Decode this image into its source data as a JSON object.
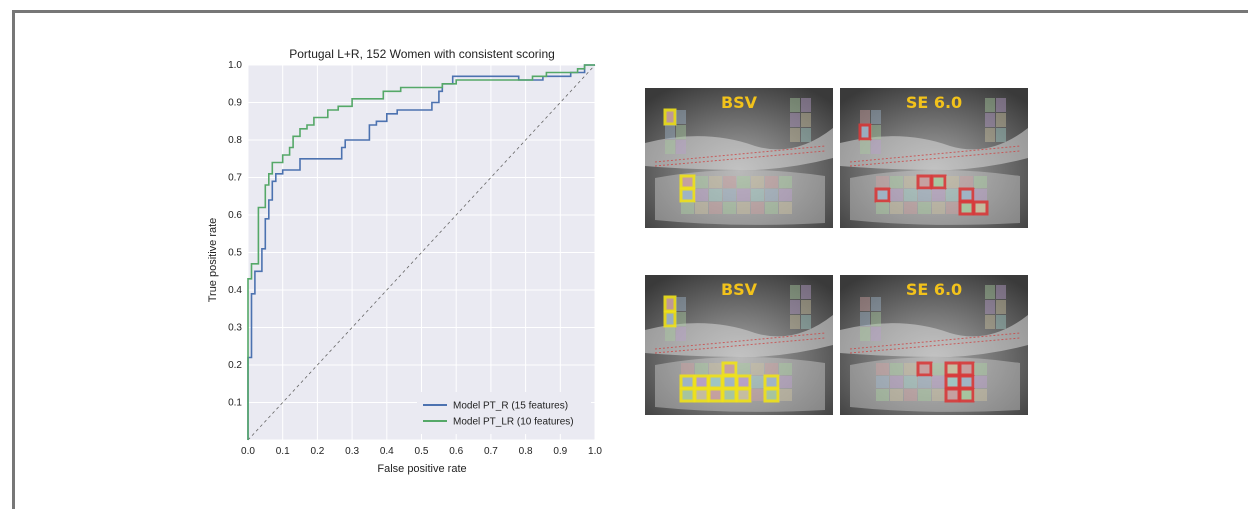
{
  "chart_data": {
    "type": "line",
    "title": "Portugal L+R, 152 Women with consistent scoring",
    "xlabel": "False positive rate",
    "ylabel": "True positive rate",
    "xlim": [
      0.0,
      1.0
    ],
    "ylim": [
      0.0,
      1.0
    ],
    "xticks": [
      "0.0",
      "0.1",
      "0.2",
      "0.3",
      "0.4",
      "0.5",
      "0.6",
      "0.7",
      "0.8",
      "0.9",
      "1.0"
    ],
    "yticks": [
      "0.1",
      "0.2",
      "0.3",
      "0.4",
      "0.5",
      "0.6",
      "0.7",
      "0.8",
      "0.9",
      "1.0"
    ],
    "grid": true,
    "legend_position": "bottom-right",
    "diagonal_reference": true,
    "series": [
      {
        "name": "Model PT_R (15 features)",
        "color": "#4c72b0",
        "points": [
          [
            0.0,
            0.0
          ],
          [
            0.0,
            0.22
          ],
          [
            0.01,
            0.22
          ],
          [
            0.01,
            0.39
          ],
          [
            0.02,
            0.39
          ],
          [
            0.02,
            0.45
          ],
          [
            0.04,
            0.45
          ],
          [
            0.04,
            0.51
          ],
          [
            0.05,
            0.51
          ],
          [
            0.05,
            0.59
          ],
          [
            0.06,
            0.59
          ],
          [
            0.06,
            0.64
          ],
          [
            0.07,
            0.64
          ],
          [
            0.07,
            0.69
          ],
          [
            0.08,
            0.69
          ],
          [
            0.08,
            0.71
          ],
          [
            0.1,
            0.71
          ],
          [
            0.1,
            0.72
          ],
          [
            0.15,
            0.72
          ],
          [
            0.15,
            0.75
          ],
          [
            0.27,
            0.75
          ],
          [
            0.27,
            0.78
          ],
          [
            0.28,
            0.78
          ],
          [
            0.28,
            0.8
          ],
          [
            0.35,
            0.8
          ],
          [
            0.35,
            0.84
          ],
          [
            0.37,
            0.84
          ],
          [
            0.37,
            0.85
          ],
          [
            0.4,
            0.85
          ],
          [
            0.4,
            0.87
          ],
          [
            0.43,
            0.87
          ],
          [
            0.43,
            0.88
          ],
          [
            0.53,
            0.88
          ],
          [
            0.53,
            0.9
          ],
          [
            0.55,
            0.9
          ],
          [
            0.55,
            0.93
          ],
          [
            0.56,
            0.93
          ],
          [
            0.56,
            0.95
          ],
          [
            0.59,
            0.95
          ],
          [
            0.59,
            0.97
          ],
          [
            0.78,
            0.97
          ],
          [
            0.78,
            0.96
          ],
          [
            0.85,
            0.96
          ],
          [
            0.85,
            0.97
          ],
          [
            0.93,
            0.97
          ],
          [
            0.93,
            0.98
          ],
          [
            0.97,
            0.98
          ],
          [
            0.97,
            1.0
          ],
          [
            1.0,
            1.0
          ]
        ]
      },
      {
        "name": "Model PT_LR (10 features)",
        "color": "#55a868",
        "points": [
          [
            0.0,
            0.0
          ],
          [
            0.0,
            0.43
          ],
          [
            0.01,
            0.43
          ],
          [
            0.01,
            0.47
          ],
          [
            0.03,
            0.47
          ],
          [
            0.03,
            0.62
          ],
          [
            0.05,
            0.62
          ],
          [
            0.05,
            0.68
          ],
          [
            0.06,
            0.68
          ],
          [
            0.06,
            0.71
          ],
          [
            0.07,
            0.71
          ],
          [
            0.07,
            0.74
          ],
          [
            0.1,
            0.74
          ],
          [
            0.1,
            0.76
          ],
          [
            0.12,
            0.76
          ],
          [
            0.12,
            0.78
          ],
          [
            0.13,
            0.78
          ],
          [
            0.13,
            0.81
          ],
          [
            0.15,
            0.81
          ],
          [
            0.15,
            0.83
          ],
          [
            0.17,
            0.83
          ],
          [
            0.17,
            0.84
          ],
          [
            0.19,
            0.84
          ],
          [
            0.19,
            0.86
          ],
          [
            0.23,
            0.86
          ],
          [
            0.23,
            0.88
          ],
          [
            0.26,
            0.88
          ],
          [
            0.26,
            0.89
          ],
          [
            0.3,
            0.89
          ],
          [
            0.3,
            0.91
          ],
          [
            0.39,
            0.91
          ],
          [
            0.39,
            0.93
          ],
          [
            0.44,
            0.93
          ],
          [
            0.44,
            0.94
          ],
          [
            0.56,
            0.94
          ],
          [
            0.56,
            0.95
          ],
          [
            0.6,
            0.95
          ],
          [
            0.6,
            0.96
          ],
          [
            0.82,
            0.96
          ],
          [
            0.82,
            0.97
          ],
          [
            0.86,
            0.97
          ],
          [
            0.86,
            0.98
          ],
          [
            0.95,
            0.98
          ],
          [
            0.95,
            0.99
          ],
          [
            0.97,
            0.99
          ],
          [
            0.97,
            1.0
          ],
          [
            1.0,
            1.0
          ]
        ]
      }
    ]
  },
  "xray_panels": [
    {
      "id": "top-left",
      "label": "BSV",
      "highlight": "#f0e21a"
    },
    {
      "id": "top-right",
      "label": "SE 6.0",
      "highlight": "#d93a3a"
    },
    {
      "id": "bottom-left",
      "label": "BSV",
      "highlight": "#f0e21a"
    },
    {
      "id": "bottom-right",
      "label": "SE 6.0",
      "highlight": "#d93a3a"
    }
  ]
}
